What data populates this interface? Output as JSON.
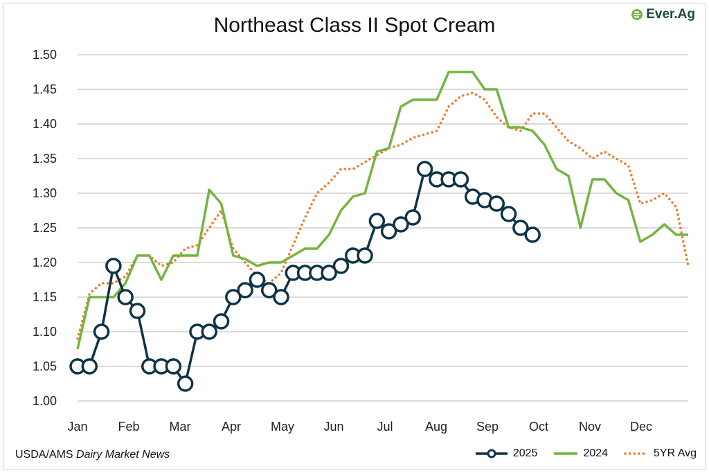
{
  "logo": {
    "text": "Ever.Ag"
  },
  "source": {
    "prefix": "USDA/AMS ",
    "italic": "Dairy Market News"
  },
  "chart_data": {
    "type": "line",
    "title": "Northeast Class II Spot Cream",
    "xlabel": "",
    "ylabel": "",
    "ylim": [
      1.0,
      1.5
    ],
    "yticks": [
      "1.00",
      "1.05",
      "1.10",
      "1.15",
      "1.20",
      "1.25",
      "1.30",
      "1.35",
      "1.40",
      "1.45",
      "1.50"
    ],
    "x_unit": "week of year",
    "xticks": [
      "Jan",
      "Feb",
      "Mar",
      "Apr",
      "May",
      "Jun",
      "Jul",
      "Aug",
      "Sep",
      "Oct",
      "Nov",
      "Dec"
    ],
    "grid": true,
    "legend_position": "bottom-right",
    "series": [
      {
        "name": "2025",
        "color": "#0d3347",
        "style": "line-circle-markers",
        "values": [
          1.05,
          1.05,
          1.1,
          1.195,
          1.15,
          1.13,
          1.05,
          1.05,
          1.05,
          1.025,
          1.1,
          1.1,
          1.115,
          1.15,
          1.16,
          1.175,
          1.16,
          1.15,
          1.185,
          1.185,
          1.185,
          1.185,
          1.195,
          1.21,
          1.21,
          1.26,
          1.245,
          1.255,
          1.265,
          1.335,
          1.32,
          1.32,
          1.32,
          1.295,
          1.29,
          1.285,
          1.27,
          1.25,
          1.24
        ]
      },
      {
        "name": "2024",
        "color": "#74b43f",
        "style": "solid",
        "values": [
          1.075,
          1.15,
          1.15,
          1.15,
          1.17,
          1.21,
          1.21,
          1.175,
          1.21,
          1.21,
          1.21,
          1.305,
          1.285,
          1.21,
          1.205,
          1.195,
          1.2,
          1.2,
          1.21,
          1.22,
          1.22,
          1.24,
          1.275,
          1.295,
          1.3,
          1.36,
          1.365,
          1.425,
          1.435,
          1.435,
          1.435,
          1.475,
          1.475,
          1.475,
          1.45,
          1.45,
          1.395,
          1.395,
          1.39,
          1.37,
          1.335,
          1.325,
          1.25,
          1.32,
          1.32,
          1.3,
          1.29,
          1.23,
          1.24,
          1.255,
          1.24,
          1.24
        ]
      },
      {
        "name": "5YR Avg",
        "color": "#ee7a2a",
        "style": "dotted",
        "values": [
          1.09,
          1.155,
          1.17,
          1.17,
          1.18,
          1.21,
          1.21,
          1.195,
          1.2,
          1.22,
          1.225,
          1.25,
          1.275,
          1.22,
          1.2,
          1.18,
          1.17,
          1.185,
          1.225,
          1.265,
          1.3,
          1.315,
          1.335,
          1.335,
          1.345,
          1.355,
          1.365,
          1.37,
          1.38,
          1.385,
          1.39,
          1.425,
          1.44,
          1.445,
          1.435,
          1.41,
          1.395,
          1.39,
          1.415,
          1.415,
          1.395,
          1.375,
          1.365,
          1.35,
          1.36,
          1.35,
          1.34,
          1.285,
          1.29,
          1.3,
          1.28,
          1.195
        ]
      }
    ]
  }
}
